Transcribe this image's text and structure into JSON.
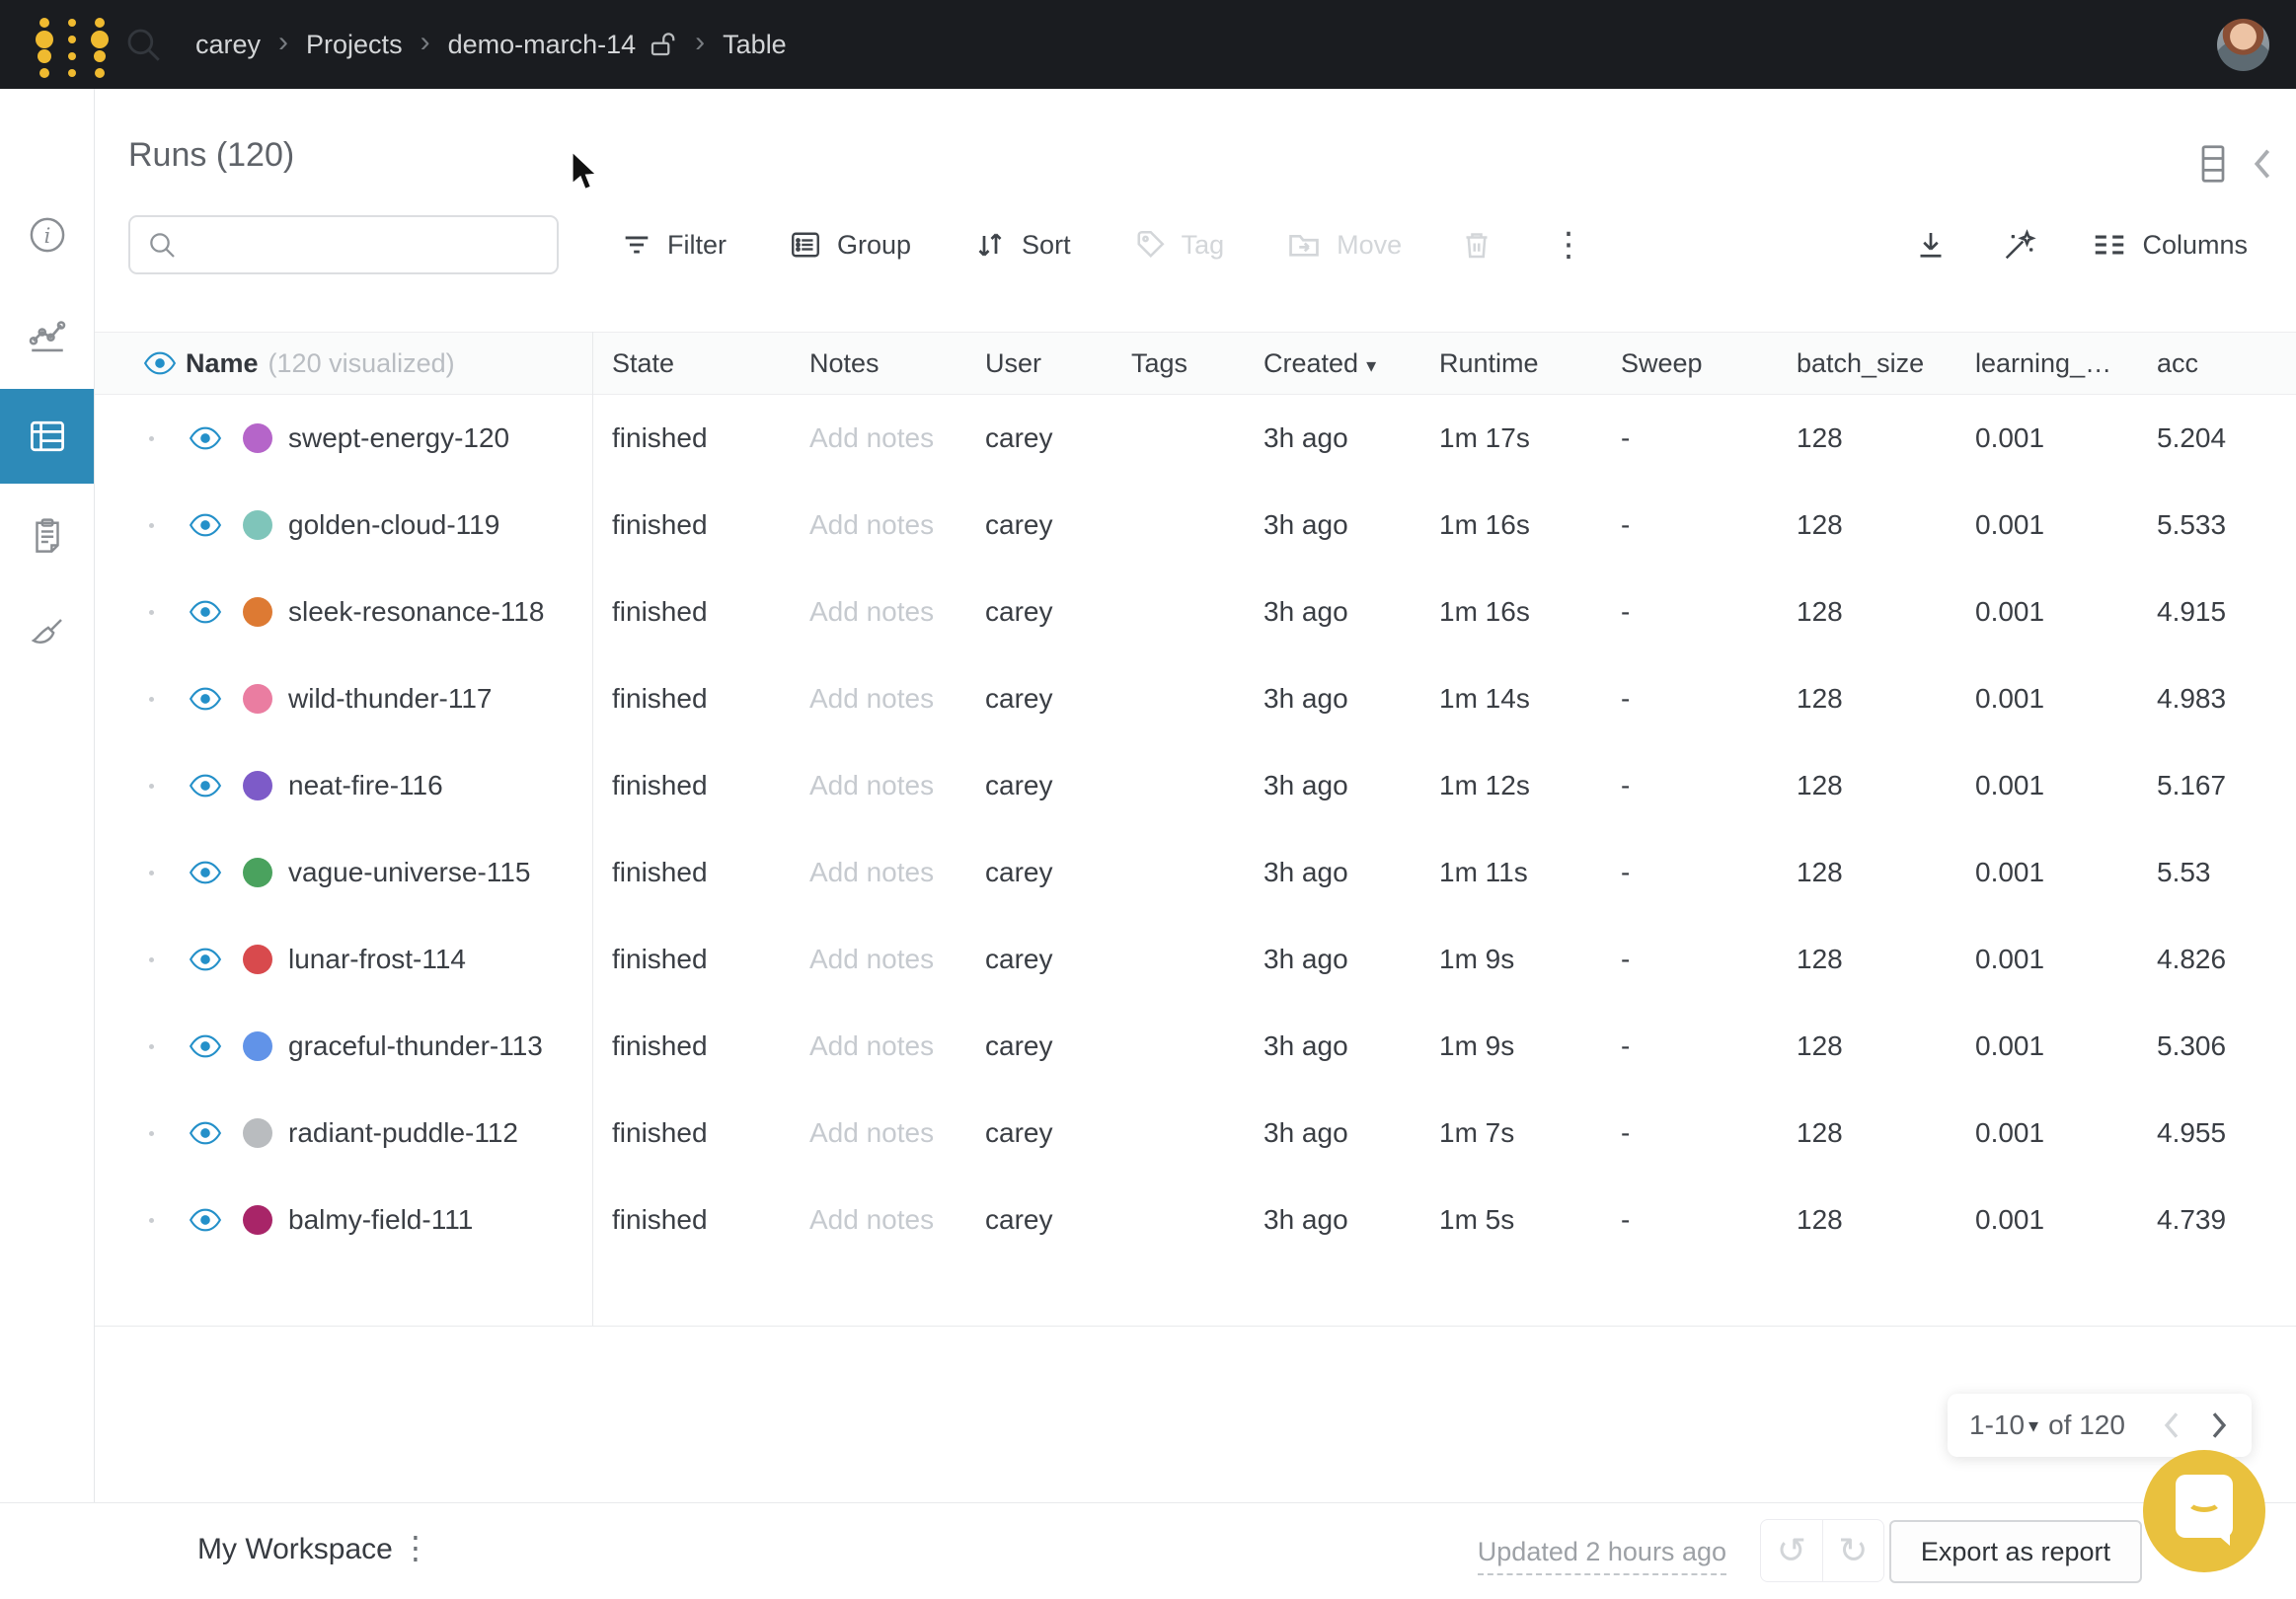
{
  "topbar": {
    "breadcrumb": [
      "carey",
      "Projects",
      "demo-march-14",
      "Table"
    ]
  },
  "sidebar": {
    "items": [
      {
        "icon": "info-icon",
        "active": false
      },
      {
        "icon": "line-chart-icon",
        "active": false
      },
      {
        "icon": "table-panel-icon",
        "active": true
      },
      {
        "icon": "clipboard-icon",
        "active": false
      },
      {
        "icon": "broom-icon",
        "active": false
      }
    ]
  },
  "title": "Runs (120)",
  "toolbar": {
    "filter": "Filter",
    "group": "Group",
    "sort": "Sort",
    "tag": "Tag",
    "move": "Move",
    "columns": "Columns"
  },
  "table": {
    "name_header": "Name",
    "name_note": "(120 visualized)",
    "columns": [
      "State",
      "Notes",
      "User",
      "Tags",
      "Created",
      "Runtime",
      "Sweep",
      "batch_size",
      "learning_…",
      "acc"
    ],
    "rows": [
      {
        "name": "swept-energy-120",
        "color": "#b565c9",
        "state": "finished",
        "notes": "Add notes",
        "user": "carey",
        "tags": "",
        "created": "3h ago",
        "runtime": "1m 17s",
        "sweep": "-",
        "batch_size": "128",
        "learning_rate": "0.001",
        "acc": "5.204"
      },
      {
        "name": "golden-cloud-119",
        "color": "#7fc5ba",
        "state": "finished",
        "notes": "Add notes",
        "user": "carey",
        "tags": "",
        "created": "3h ago",
        "runtime": "1m 16s",
        "sweep": "-",
        "batch_size": "128",
        "learning_rate": "0.001",
        "acc": "5.533"
      },
      {
        "name": "sleek-resonance-118",
        "color": "#dd7a33",
        "state": "finished",
        "notes": "Add notes",
        "user": "carey",
        "tags": "",
        "created": "3h ago",
        "runtime": "1m 16s",
        "sweep": "-",
        "batch_size": "128",
        "learning_rate": "0.001",
        "acc": "4.915"
      },
      {
        "name": "wild-thunder-117",
        "color": "#ea7da1",
        "state": "finished",
        "notes": "Add notes",
        "user": "carey",
        "tags": "",
        "created": "3h ago",
        "runtime": "1m 14s",
        "sweep": "-",
        "batch_size": "128",
        "learning_rate": "0.001",
        "acc": "4.983"
      },
      {
        "name": "neat-fire-116",
        "color": "#7d5bc8",
        "state": "finished",
        "notes": "Add notes",
        "user": "carey",
        "tags": "",
        "created": "3h ago",
        "runtime": "1m 12s",
        "sweep": "-",
        "batch_size": "128",
        "learning_rate": "0.001",
        "acc": "5.167"
      },
      {
        "name": "vague-universe-115",
        "color": "#4aa25e",
        "state": "finished",
        "notes": "Add notes",
        "user": "carey",
        "tags": "",
        "created": "3h ago",
        "runtime": "1m 11s",
        "sweep": "-",
        "batch_size": "128",
        "learning_rate": "0.001",
        "acc": "5.53"
      },
      {
        "name": "lunar-frost-114",
        "color": "#d84a4d",
        "state": "finished",
        "notes": "Add notes",
        "user": "carey",
        "tags": "",
        "created": "3h ago",
        "runtime": "1m 9s",
        "sweep": "-",
        "batch_size": "128",
        "learning_rate": "0.001",
        "acc": "4.826"
      },
      {
        "name": "graceful-thunder-113",
        "color": "#6193e8",
        "state": "finished",
        "notes": "Add notes",
        "user": "carey",
        "tags": "",
        "created": "3h ago",
        "runtime": "1m 9s",
        "sweep": "-",
        "batch_size": "128",
        "learning_rate": "0.001",
        "acc": "5.306"
      },
      {
        "name": "radiant-puddle-112",
        "color": "#b9bcbf",
        "state": "finished",
        "notes": "Add notes",
        "user": "carey",
        "tags": "",
        "created": "3h ago",
        "runtime": "1m 7s",
        "sweep": "-",
        "batch_size": "128",
        "learning_rate": "0.001",
        "acc": "4.955"
      },
      {
        "name": "balmy-field-111",
        "color": "#a82568",
        "state": "finished",
        "notes": "Add notes",
        "user": "carey",
        "tags": "",
        "created": "3h ago",
        "runtime": "1m 5s",
        "sweep": "-",
        "batch_size": "128",
        "learning_rate": "0.001",
        "acc": "4.739"
      }
    ]
  },
  "pagination": {
    "range": "1-10",
    "of_total": "of 120"
  },
  "footer": {
    "workspace": "My Workspace",
    "updated": "Updated 2 hours ago",
    "export_report": "Export as report"
  },
  "icons": {
    "kebab_glyph": "⋮",
    "undo_glyph": "↺",
    "redo_glyph": "↻",
    "caret_glyph": "▾",
    "breadcrumb_sep": "›"
  },
  "colors": {
    "accent_blue": "#2d8ab8",
    "eye_blue": "#2490c9",
    "brand_gold": "#efba30",
    "topbar_bg": "#1a1c20",
    "chat_yellow": "#e9c13e"
  }
}
